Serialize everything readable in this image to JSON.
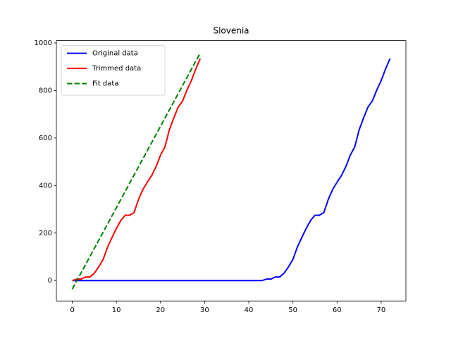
{
  "chart_data": {
    "type": "line",
    "title": "Slovenia",
    "series": [
      {
        "name": "Original data",
        "color": "#0000ff",
        "linestyle": "solid",
        "x": [
          0,
          1,
          2,
          3,
          4,
          5,
          6,
          7,
          8,
          9,
          10,
          11,
          12,
          13,
          14,
          15,
          16,
          17,
          18,
          19,
          20,
          21,
          22,
          23,
          24,
          25,
          26,
          27,
          28,
          29,
          30,
          31,
          32,
          33,
          34,
          35,
          36,
          37,
          38,
          39,
          40,
          41,
          42,
          43,
          44,
          45,
          46,
          47,
          48,
          49,
          50,
          51,
          52,
          53,
          54,
          55,
          56,
          57,
          58,
          59,
          60,
          61,
          62,
          63,
          64,
          65,
          66,
          67,
          68,
          69,
          70,
          71,
          72
        ],
        "values": [
          0,
          0,
          0,
          0,
          0,
          0,
          0,
          0,
          0,
          0,
          0,
          0,
          0,
          0,
          0,
          0,
          0,
          0,
          0,
          0,
          0,
          0,
          0,
          0,
          0,
          0,
          0,
          0,
          0,
          0,
          0,
          0,
          0,
          0,
          0,
          0,
          0,
          0,
          0,
          0,
          0,
          0,
          0,
          0,
          6,
          6,
          15,
          15,
          31,
          58,
          89,
          141,
          181,
          219,
          253,
          275,
          275,
          286,
          341,
          383,
          414,
          442,
          480,
          528,
          562,
          634,
          684,
          730,
          756,
          802,
          842,
          891,
          934
        ]
      },
      {
        "name": "Trimmed data",
        "color": "#ff0000",
        "linestyle": "solid",
        "x": [
          0,
          1,
          2,
          3,
          4,
          5,
          6,
          7,
          8,
          9,
          10,
          11,
          12,
          13,
          14,
          15,
          16,
          17,
          18,
          19,
          20,
          21,
          22,
          23,
          24,
          25,
          26,
          27,
          28,
          29
        ],
        "values": [
          0,
          6,
          6,
          15,
          15,
          31,
          58,
          89,
          141,
          181,
          219,
          253,
          275,
          275,
          286,
          341,
          383,
          414,
          442,
          480,
          528,
          562,
          634,
          684,
          730,
          756,
          802,
          842,
          891,
          934
        ]
      },
      {
        "name": "Fit data",
        "color": "#008000",
        "linestyle": "dashed",
        "x": [
          0,
          29
        ],
        "values": [
          -36,
          958
        ]
      }
    ],
    "xlim": [
      -3.6,
      75.6
    ],
    "xticks": [
      0,
      10,
      20,
      30,
      40,
      50,
      60,
      70
    ],
    "ylim": [
      -86,
      1010
    ],
    "yticks": [
      0,
      200,
      400,
      600,
      800,
      1000
    ],
    "legend": "upper left"
  }
}
